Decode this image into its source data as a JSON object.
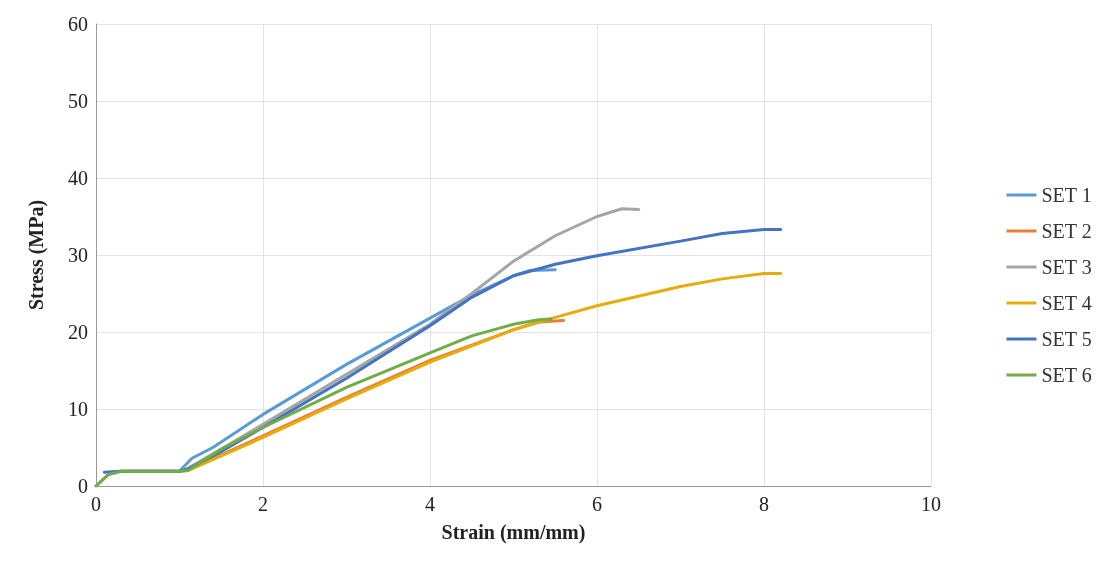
{
  "chart_data": {
    "type": "line",
    "xlabel": "Strain (mm/mm)",
    "ylabel": "Stress (MPa)",
    "xlim": [
      0,
      10
    ],
    "xticks": [
      0,
      2,
      4,
      6,
      8,
      10
    ],
    "ylim": [
      0,
      60
    ],
    "yticks": [
      0,
      10,
      20,
      30,
      40,
      50,
      60
    ],
    "grid": true,
    "legend": "right",
    "marker": "none",
    "line_style": "solid",
    "series": [
      {
        "name": "SET 1",
        "color": "#5b9bd5",
        "x": [
          0.3,
          1.0,
          1.05,
          1.15,
          1.4,
          2,
          3,
          4,
          4.5,
          5,
          5.2,
          5.5
        ],
        "values": [
          1.9,
          1.9,
          2.5,
          3.6,
          5,
          9.3,
          15.8,
          21.8,
          24.8,
          27.3,
          28,
          28.1
        ]
      },
      {
        "name": "SET 2",
        "color": "#ed7d31",
        "x": [
          1.0,
          1.1,
          2,
          3,
          4,
          5,
          5.3,
          5.6
        ],
        "values": [
          1.9,
          2.1,
          6.5,
          11.5,
          16.3,
          20.3,
          21.3,
          21.5
        ]
      },
      {
        "name": "SET 3",
        "color": "#a5a5a5",
        "x": [
          0,
          0.15,
          0.3,
          1.0,
          1.1,
          1.5,
          2,
          3,
          4,
          4.5,
          5,
          5.5,
          6,
          6.3,
          6.5
        ],
        "values": [
          0,
          1.5,
          1.9,
          1.9,
          2.3,
          4.8,
          8,
          14.5,
          21,
          25,
          29.2,
          32.5,
          35,
          36,
          35.9
        ]
      },
      {
        "name": "SET 4",
        "color": "#e6ac0c",
        "x": [
          1.0,
          1.1,
          2,
          3,
          4,
          5,
          5.5,
          6,
          7,
          7.5,
          8,
          8.2
        ],
        "values": [
          1.9,
          2,
          6.3,
          11.3,
          16.1,
          20.3,
          21.9,
          23.4,
          25.9,
          26.9,
          27.6,
          27.6
        ]
      },
      {
        "name": "SET 5",
        "color": "#4472c4",
        "x": [
          0.1,
          0.3,
          1.0,
          1.1,
          1.5,
          2,
          3,
          4,
          4.5,
          5,
          5.5,
          6,
          7,
          7.5,
          8,
          8.2
        ],
        "values": [
          1.8,
          1.9,
          1.9,
          2.2,
          4.5,
          7.6,
          14,
          20.8,
          24.5,
          27.3,
          28.8,
          29.9,
          31.8,
          32.8,
          33.3,
          33.3
        ]
      },
      {
        "name": "SET 6",
        "color": "#70ad47",
        "x": [
          0,
          0.15,
          0.3,
          1.0,
          1.1,
          1.5,
          2,
          3,
          4,
          4.5,
          5,
          5.3,
          5.45
        ],
        "values": [
          0,
          1.5,
          1.9,
          1.9,
          2,
          4.8,
          7.6,
          12.8,
          17.3,
          19.5,
          21,
          21.6,
          21.7
        ]
      }
    ]
  }
}
